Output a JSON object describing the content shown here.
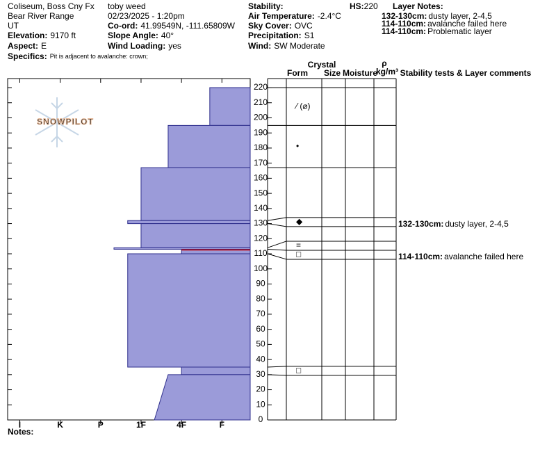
{
  "header": {
    "col1": [
      "Coliseum, Boss Cny Fx",
      "Bear River Range",
      "UT",
      {
        "label": "Elevation:",
        "value": "9170 ft"
      },
      {
        "label": "Aspect:",
        "value": "E"
      }
    ],
    "col2": [
      "toby weed",
      "02/23/2025 - 1:20pm",
      {
        "label": "Co-ord:",
        "value": "41.99549N, -111.65809W"
      },
      {
        "label": "Slope Angle:",
        "value": "40°"
      },
      {
        "label": "Wind Loading:",
        "value": "yes"
      }
    ],
    "col3": [
      {
        "label": "Stability:"
      },
      {
        "label": "Air Temperature:",
        "value": "-2.4°C"
      },
      {
        "label": "Sky Cover:",
        "value": "OVC"
      },
      {
        "label": "Precipitation:",
        "value": "S1"
      },
      {
        "label": "Wind:",
        "value": "SW Moderate"
      }
    ],
    "specifics": {
      "label": "Specifics:",
      "value": "Pit is adjacent to avalanche: crown;"
    },
    "hs": {
      "label": "HS:",
      "value": "220"
    },
    "layer_notes_title": "Layer Notes:",
    "layer_notes": [
      {
        "label": "132-130cm:",
        "text": "dusty layer, 2-4,5"
      },
      {
        "label": "114-110cm:",
        "text": "avalanche failed here"
      },
      {
        "label": "114-110cm:",
        "text": "Problematic layer"
      }
    ],
    "watermark": "SNOWPILOT"
  },
  "chart_data": {
    "type": "snow-profile",
    "xlim": [
      6.3,
      0.3
    ],
    "xticks": [
      {
        "value": 6,
        "label": "I"
      },
      {
        "value": 5,
        "label": "K"
      },
      {
        "value": 4,
        "label": "P"
      },
      {
        "value": 3,
        "label": "1F"
      },
      {
        "value": 2,
        "label": "4F"
      },
      {
        "value": 1,
        "label": "F"
      }
    ],
    "ylim": [
      0,
      226
    ],
    "yticks": [
      0,
      10,
      20,
      30,
      40,
      50,
      60,
      70,
      80,
      90,
      100,
      110,
      120,
      130,
      140,
      150,
      160,
      170,
      180,
      190,
      200,
      210,
      220
    ],
    "color": "#9b9bd9",
    "edge_color": "#2e2e8c",
    "highlight_color": "#cc0000",
    "table_headers": {
      "crystal": "Crystal",
      "form": "Form",
      "size": "Size",
      "moisture": "Moisture",
      "rho": "ρ",
      "density_unit": "kg/m³",
      "comments": "Stability tests & Layer comments"
    },
    "layers": [
      {
        "top": 220,
        "bottom": 195,
        "hardness": 1.3,
        "form": "⁄ (⌀)"
      },
      {
        "top": 195,
        "bottom": 167,
        "hardness": 2.33,
        "form": "•"
      },
      {
        "top": 167,
        "bottom": 132,
        "hardness": 3
      },
      {
        "top": 132,
        "bottom": 130,
        "hardness": 3.33,
        "form": "◆",
        "comment": {
          "label": "132-130cm:",
          "text": "dusty layer, 2-4,5"
        }
      },
      {
        "top": 130,
        "bottom": 114,
        "hardness": 3
      },
      {
        "top": 114,
        "bottom": 113,
        "hardness": 3.67,
        "form": "="
      },
      {
        "top": 113,
        "bottom": 110,
        "hardness": 2,
        "form": "□",
        "highlight": true,
        "comment": {
          "label": "114-110cm:",
          "text": "avalanche failed here"
        }
      },
      {
        "top": 110,
        "bottom": 35,
        "hardness": 3.33
      },
      {
        "top": 35,
        "bottom": 30,
        "hardness": 2,
        "form": "□"
      },
      {
        "top": 30,
        "bottom": 0,
        "hardness": 2.33,
        "hardness_bottom": 2.67
      }
    ]
  },
  "footer": {
    "notes": "Notes:"
  }
}
